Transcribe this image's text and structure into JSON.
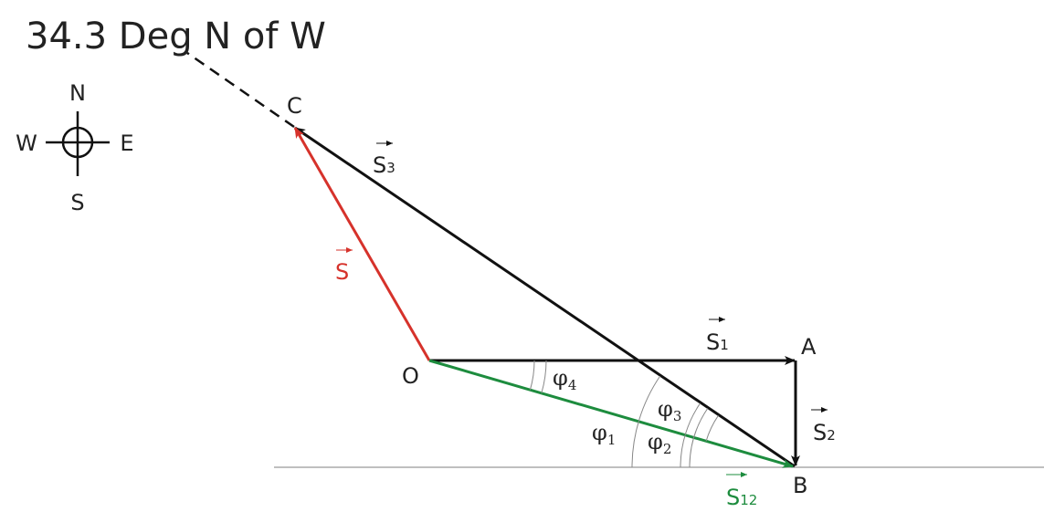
{
  "title": "34.3 Deg N of W",
  "compass": {
    "north": "N",
    "south": "S",
    "east": "E",
    "west": "W"
  },
  "points": {
    "O": "O",
    "A": "A",
    "B": "B",
    "C": "C"
  },
  "vectors": {
    "s": {
      "label": "S",
      "subscript": "",
      "color": "#d6322b"
    },
    "s1": {
      "label": "S",
      "subscript": "1",
      "color": "#111111"
    },
    "s2": {
      "label": "S",
      "subscript": "2",
      "color": "#111111"
    },
    "s3": {
      "label": "S",
      "subscript": "3",
      "color": "#111111"
    },
    "s12": {
      "label": "S",
      "subscript": "12",
      "color": "#1d8c3e"
    }
  },
  "angles": {
    "phi1": {
      "symbol": "φ",
      "subscript": "1"
    },
    "phi2": {
      "symbol": "φ",
      "subscript": "2"
    },
    "phi3": {
      "symbol": "φ",
      "subscript": "3"
    },
    "phi4": {
      "symbol": "φ",
      "subscript": "4"
    }
  }
}
